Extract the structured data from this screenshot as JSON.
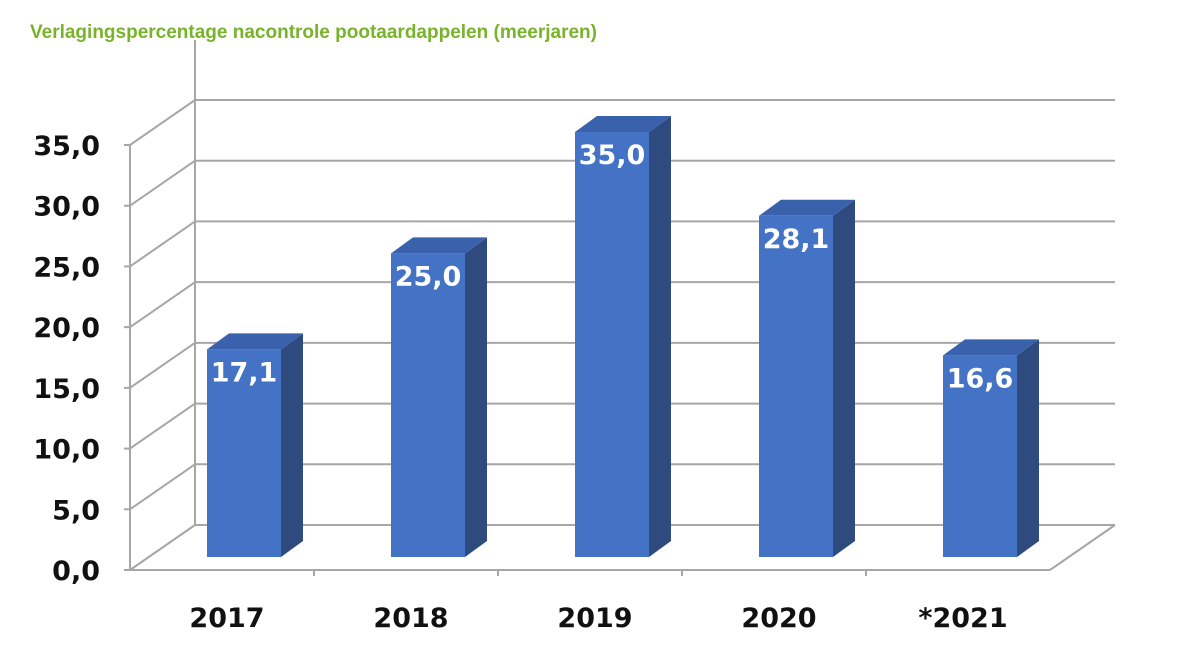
{
  "page": {
    "title": "Verlagingspercentage nacontrole pootaardappelen (meerjaren)"
  },
  "colors": {
    "title": "#78b32a",
    "bar_front": "#4472c4",
    "bar_side": "#2e4a7e",
    "bar_top": "#3a61ab",
    "grid": "#a6a6a6"
  },
  "chart_data": {
    "type": "bar",
    "title": "Verlagingspercentage nacontrole pootaardappelen (meerjaren)",
    "categories": [
      "2017",
      "2018",
      "2019",
      "2020",
      "*2021"
    ],
    "values": [
      17.1,
      25.0,
      35.0,
      28.1,
      16.6
    ],
    "value_labels": [
      "17,1",
      "25,0",
      "35,0",
      "28,1",
      "16,6"
    ],
    "y_ticks": [
      "0,0",
      "5,0",
      "10,0",
      "15,0",
      "20,0",
      "25,0",
      "30,0",
      "35,0"
    ],
    "ylim": [
      0,
      35
    ],
    "xlabel": "",
    "ylabel": "",
    "grid": true,
    "legend": "none",
    "style": "3d-column"
  }
}
